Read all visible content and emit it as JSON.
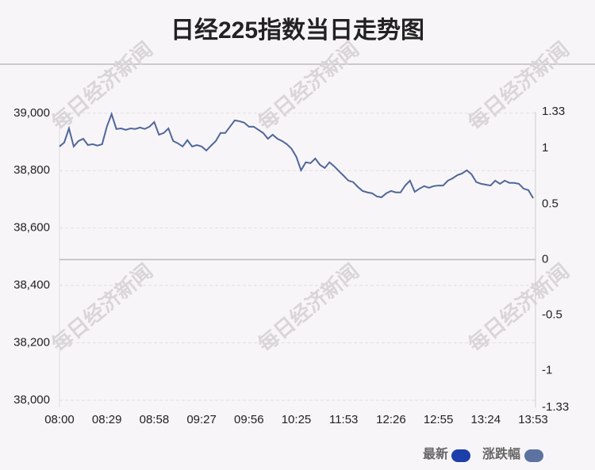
{
  "chart_data": {
    "type": "line",
    "title": "日经225指数当日走势图",
    "watermark": "每日经济新闻",
    "categories": [
      "08:00",
      null,
      null,
      null,
      null,
      null,
      null,
      null,
      null,
      null,
      "08:29",
      null,
      null,
      null,
      null,
      null,
      null,
      null,
      null,
      null,
      "08:58",
      null,
      null,
      null,
      null,
      null,
      null,
      null,
      null,
      null,
      "09:27",
      null,
      null,
      null,
      null,
      null,
      null,
      null,
      null,
      null,
      "09:56",
      null,
      null,
      null,
      null,
      null,
      null,
      null,
      null,
      null,
      "10:25",
      null,
      null,
      null,
      null,
      null,
      null,
      null,
      null,
      null,
      "11:53",
      null,
      null,
      null,
      null,
      null,
      null,
      null,
      null,
      null,
      "12:26",
      null,
      null,
      null,
      null,
      null,
      null,
      null,
      null,
      null,
      "12:55",
      null,
      null,
      null,
      null,
      null,
      null,
      null,
      null,
      null,
      "13:24",
      null,
      null,
      null,
      null,
      null,
      null,
      null,
      null,
      null,
      "13:53"
    ],
    "series": [
      {
        "name": "最新",
        "color": "#4f6799",
        "values": [
          38884,
          38898,
          38947,
          38884,
          38903,
          38911,
          38889,
          38892,
          38887,
          38892,
          38953,
          38997,
          38945,
          38947,
          38942,
          38947,
          38945,
          38950,
          38945,
          38953,
          38969,
          38925,
          38931,
          38947,
          38903,
          38895,
          38884,
          38906,
          38884,
          38889,
          38884,
          38870,
          38887,
          38903,
          38931,
          38931,
          38953,
          38975,
          38972,
          38967,
          38953,
          38953,
          38942,
          38931,
          38911,
          38925,
          38911,
          38903,
          38892,
          38876,
          38848,
          38801,
          38829,
          38826,
          38842,
          38820,
          38809,
          38829,
          38815,
          38798,
          38782,
          38765,
          38760,
          38743,
          38729,
          38724,
          38721,
          38710,
          38707,
          38721,
          38729,
          38724,
          38724,
          38748,
          38765,
          38726,
          38737,
          38746,
          38740,
          38746,
          38748,
          38748,
          38765,
          38773,
          38784,
          38790,
          38801,
          38787,
          38760,
          38754,
          38751,
          38748,
          38765,
          38754,
          38765,
          38757,
          38757,
          38754,
          38737,
          38732,
          38704
        ]
      }
    ],
    "legend": [
      {
        "label": "最新",
        "color": "#1c3fa9"
      },
      {
        "label": "涨跌幅",
        "color": "#5c73a1"
      }
    ],
    "ylim": [
      37975,
      39005
    ],
    "yticks": [
      {
        "value": 38000,
        "label": "38,000"
      },
      {
        "value": 38200,
        "label": "38,200"
      },
      {
        "value": 38400,
        "label": "38,400"
      },
      {
        "value": 38600,
        "label": "38,600"
      },
      {
        "value": 38800,
        "label": "38,800"
      },
      {
        "value": 39000,
        "label": "39,000"
      }
    ],
    "y2lim": [
      -1.33,
      1.33
    ],
    "y2ticks": [
      -1.33,
      -1,
      -0.5,
      0,
      0.5,
      1,
      1.33
    ],
    "grid": true
  }
}
